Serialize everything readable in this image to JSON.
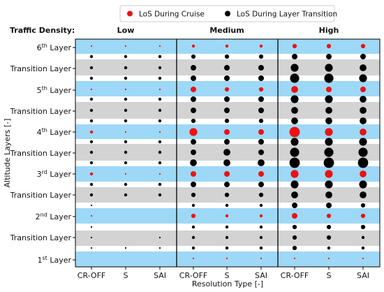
{
  "chart_data": {
    "type": "scatter",
    "legend": {
      "placement": "top-center",
      "entries": [
        {
          "label": "LoS During Cruise",
          "color": "#ee1111"
        },
        {
          "label": "LoS During Layer Transition",
          "color": "#000000"
        }
      ]
    },
    "row_header": "Traffic Density:",
    "groups": [
      "Low",
      "Medium",
      "High"
    ],
    "x_tick_labels": [
      "CR-OFF",
      "S",
      "SAI",
      "CR-OFF",
      "S",
      "SAI",
      "CR-OFF",
      "S",
      "SAI"
    ],
    "xlabel": "Resolution Type [-]",
    "ylabel": "Altitude Layers [-]",
    "y_tick_labels": [
      {
        "base": "6",
        "sup": "th",
        "suffix": " Layer"
      },
      {
        "base": "Transition Layer",
        "sup": "",
        "suffix": ""
      },
      {
        "base": "5",
        "sup": "th",
        "suffix": " Layer"
      },
      {
        "base": "Transition Layer",
        "sup": "",
        "suffix": ""
      },
      {
        "base": "4",
        "sup": "th",
        "suffix": " Layer"
      },
      {
        "base": "Transition Layer",
        "sup": "",
        "suffix": ""
      },
      {
        "base": "3",
        "sup": "rd",
        "suffix": " Layer"
      },
      {
        "base": "Transition Layer",
        "sup": "",
        "suffix": ""
      },
      {
        "base": "2",
        "sup": "nd",
        "suffix": " Layer"
      },
      {
        "base": "Transition Layer",
        "sup": "",
        "suffix": ""
      },
      {
        "base": "1",
        "sup": "st",
        "suffix": " Layer"
      }
    ],
    "colors": {
      "cruise_band": "#9ed8f7",
      "transition_band": "#d3d3d3",
      "gap": "#ffffff",
      "cruise": "#ee1111",
      "transition": "#000000"
    },
    "series": [
      {
        "name": "LoS During Cruise",
        "color": "#ee1111",
        "rows": [
          {
            "layer": 6,
            "sizes": [
              1,
              1,
              1,
              2,
              2,
              2,
              3,
              3,
              3
            ]
          },
          {
            "layer": 5,
            "sizes": [
              1,
              1,
              1,
              4,
              3,
              3,
              5,
              4,
              4
            ]
          },
          {
            "layer": 4,
            "sizes": [
              2,
              1,
              1,
              6,
              4,
              4,
              8,
              6,
              5
            ]
          },
          {
            "layer": 3,
            "sizes": [
              2,
              1,
              1,
              4,
              4,
              4,
              6,
              6,
              5
            ]
          },
          {
            "layer": 2,
            "sizes": [
              1,
              0,
              0,
              3,
              2,
              2,
              4,
              3,
              3
            ]
          },
          {
            "layer": 1,
            "sizes": [
              0,
              0,
              0,
              1,
              1,
              1,
              1,
              1,
              1
            ]
          }
        ]
      },
      {
        "name": "LoS During Layer Transition",
        "color": "#000000",
        "rows": [
          {
            "row": 1,
            "sizes": [
              1,
              0,
              0,
              2,
              2,
              2,
              3,
              3,
              3
            ]
          },
          {
            "row": 2,
            "sizes": [
              2,
              2,
              2,
              3,
              3,
              3,
              4,
              4,
              4
            ]
          },
          {
            "row": 3,
            "sizes": [
              2,
              2,
              2,
              4,
              4,
              4,
              6,
              6,
              5
            ]
          },
          {
            "row": 4,
            "sizes": [
              2,
              2,
              2,
              4,
              4,
              4,
              7,
              7,
              6
            ]
          },
          {
            "row": 5,
            "sizes": [
              2,
              2,
              2,
              4,
              4,
              4,
              6,
              6,
              5
            ]
          },
          {
            "row": 6,
            "sizes": [
              2,
              2,
              2,
              4,
              4,
              4,
              5,
              5,
              5
            ]
          },
          {
            "row": 7,
            "sizes": [
              2,
              2,
              2,
              3,
              3,
              3,
              5,
              5,
              5
            ]
          },
          {
            "row": 8,
            "sizes": [
              2,
              2,
              2,
              4,
              4,
              4,
              6,
              6,
              6
            ]
          },
          {
            "row": 9,
            "sizes": [
              2,
              2,
              2,
              4,
              5,
              4,
              7,
              7,
              7
            ]
          },
          {
            "row": 10,
            "sizes": [
              2,
              2,
              2,
              5,
              5,
              5,
              8,
              8,
              8
            ]
          },
          {
            "row": 11,
            "sizes": [
              2,
              2,
              2,
              4,
              4,
              4,
              6,
              6,
              6
            ]
          },
          {
            "row": 12,
            "sizes": [
              2,
              2,
              2,
              3,
              3,
              3,
              5,
              5,
              5
            ]
          },
          {
            "row": 13,
            "sizes": [
              1,
              0,
              0,
              2,
              2,
              2,
              4,
              4,
              3
            ]
          },
          {
            "row": 14,
            "sizes": [
              1,
              0,
              0,
              2,
              2,
              2,
              3,
              3,
              3
            ]
          },
          {
            "row": 15,
            "sizes": [
              1,
              0,
              1,
              2,
              2,
              2,
              3,
              3,
              2
            ]
          },
          {
            "row": 16,
            "sizes": [
              1,
              1,
              1,
              2,
              2,
              2,
              3,
              2,
              2
            ]
          }
        ]
      }
    ]
  }
}
